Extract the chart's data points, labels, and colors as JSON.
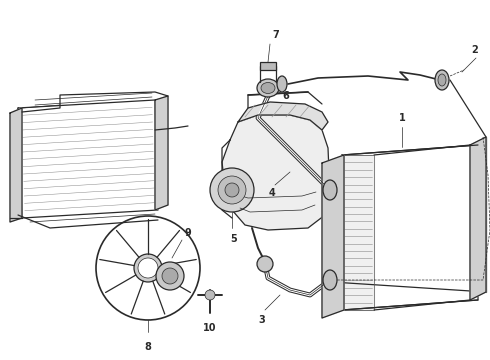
{
  "bg_color": "#ffffff",
  "line_color": "#2a2a2a",
  "fig_w": 4.9,
  "fig_h": 3.6,
  "dpi": 100,
  "lw_main": 0.9,
  "lw_thin": 0.5,
  "lw_thick": 1.3
}
